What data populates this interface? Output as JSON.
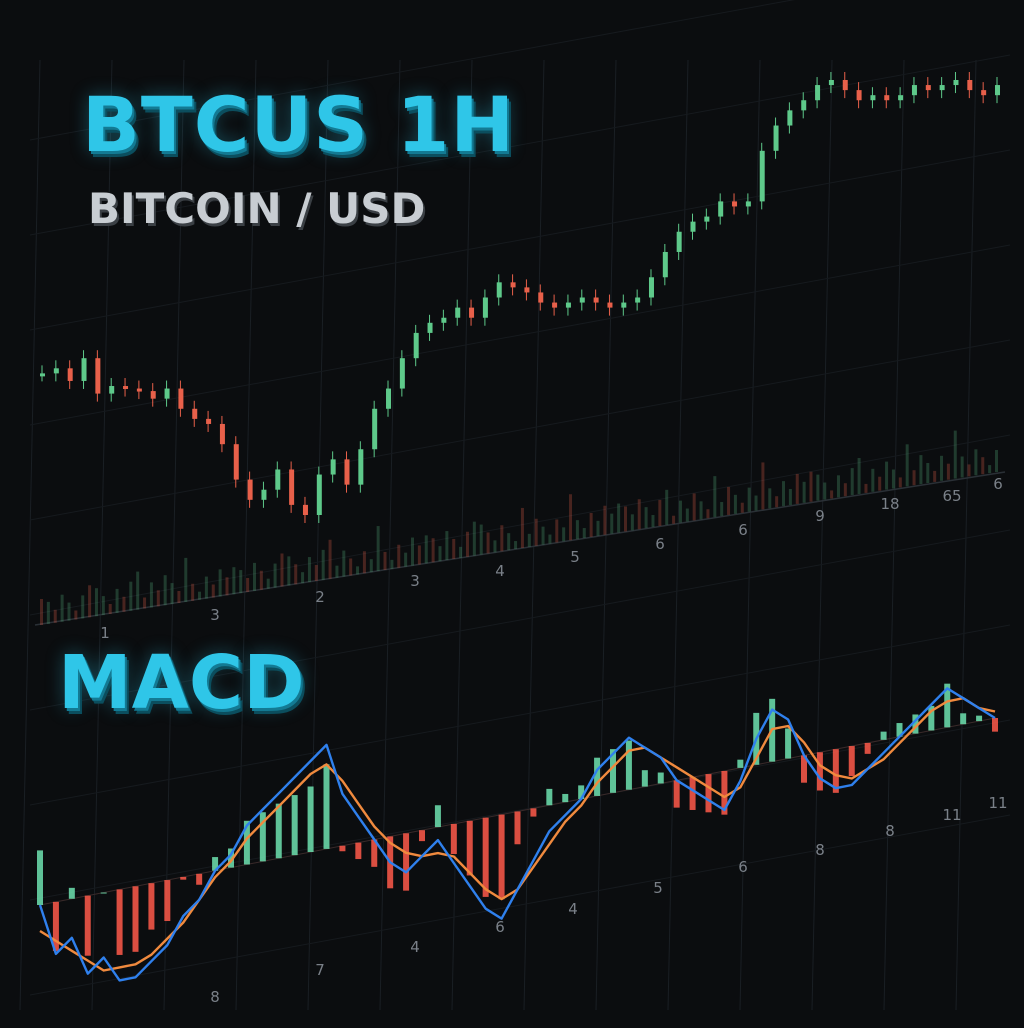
{
  "header": {
    "title": "BTCUS 1H",
    "subtitle": "BITCOIN / USD",
    "macd_title": "MACD"
  },
  "colors": {
    "background": "#0b0d0f",
    "up": "#5ec98a",
    "down": "#e8604a",
    "macd_line": "#2f80ed",
    "signal_line": "#f08a3e",
    "hist_pos": "#6fe3b0",
    "hist_neg": "#ff5a4a",
    "title": "#2fc6e8"
  },
  "chart_data": [
    {
      "type": "line",
      "series": [
        {
          "values": [
            36,
            38,
            33,
            42,
            28,
            31,
            30,
            29,
            26,
            30,
            22,
            18,
            16,
            8,
            -6,
            -14,
            -10,
            -2,
            -16,
            -20,
            -4,
            2,
            -8,
            6,
            22,
            30,
            42,
            52,
            56,
            58,
            62,
            58,
            66,
            72,
            70,
            68,
            64,
            62,
            64,
            66,
            64,
            62,
            64,
            66,
            74,
            84,
            92,
            96,
            98,
            104,
            102,
            104,
            124,
            134,
            140,
            144,
            150,
            152,
            148,
            144,
            146,
            144,
            146,
            150,
            148,
            150,
            152,
            148,
            146,
            150
          ]
        }
      ],
      "x_tick_labels": [
        "1",
        "3",
        "2",
        "3",
        "4",
        "5",
        "6",
        "6",
        "9",
        "18",
        "65",
        "6"
      ]
    },
    {
      "type": "line",
      "series": [
        {
          "values": [
            0,
            -8,
            -6,
            -12,
            -10,
            -14,
            -14,
            -12,
            -10,
            -6,
            -4,
            0,
            2,
            6,
            8,
            10,
            12,
            14,
            16,
            8,
            4,
            0,
            -4,
            -6,
            -4,
            -2,
            -6,
            -10,
            -14,
            -16,
            -12,
            -8,
            -4,
            -2,
            0,
            4,
            6,
            8,
            6,
            4,
            0,
            -2,
            -4,
            -6,
            -2,
            4,
            8,
            6,
            0,
            -4,
            -6,
            -6,
            -4,
            -2,
            0,
            2,
            4,
            6,
            4,
            2,
            0
          ]
        },
        {
          "values": [
            -4,
            -6,
            -8,
            -10,
            -12,
            -12,
            -12,
            -11,
            -9,
            -7,
            -4,
            -1,
            1,
            4,
            6,
            8,
            10,
            12,
            13,
            10,
            6,
            2,
            -1,
            -3,
            -4,
            -4,
            -5,
            -8,
            -11,
            -13,
            -12,
            -9,
            -6,
            -3,
            -1,
            2,
            4,
            6,
            6,
            4,
            2,
            0,
            -2,
            -4,
            -3,
            1,
            5,
            5,
            2,
            -2,
            -4,
            -5,
            -4,
            -3,
            -1,
            1,
            3,
            4,
            4,
            2,
            1
          ]
        }
      ],
      "x_tick_labels": [
        "8",
        "7",
        "4",
        "6",
        "4",
        "5",
        "6",
        "8",
        "8",
        "11",
        "11"
      ]
    }
  ]
}
